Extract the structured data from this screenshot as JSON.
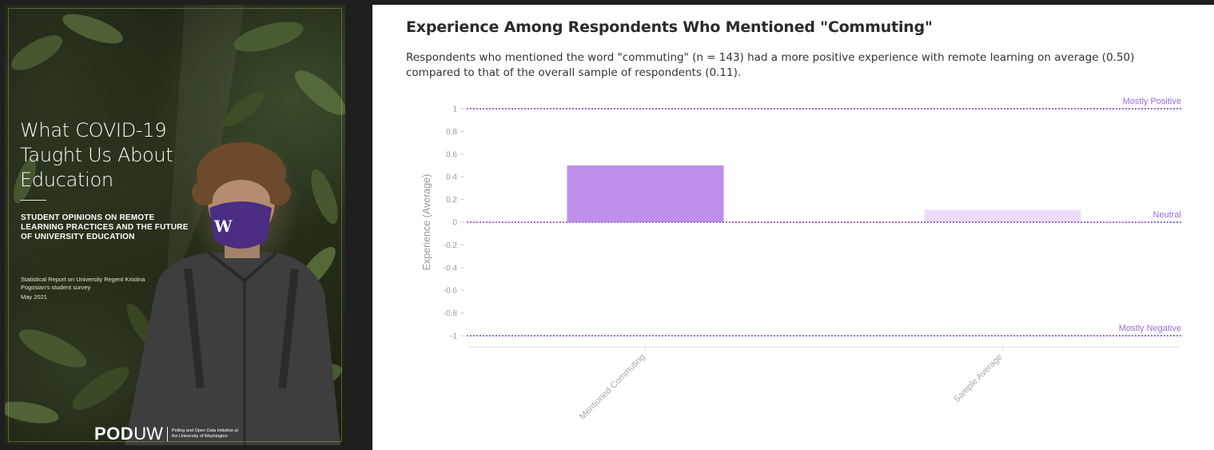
{
  "cover": {
    "title": "What COVID-19 Taught Us About Education",
    "subtitle": "STUDENT OPINIONS ON REMOTE LEARNING PRACTICES AND THE FUTURE OF UNIVERSITY EDUCATION",
    "report_line": "Statistical Report on University Regent Kristina Pogosian's student survey",
    "date": "May 2021",
    "logo_bold": "POD",
    "logo_light": "UW",
    "logo_tagline": "Polling and Open Data Initiative at the University of Washington",
    "mask_letter": "W"
  },
  "chart_panel": {
    "title": "Experience Among Respondents Who Mentioned \"Commuting\"",
    "description": "Respondents who mentioned the word \"commuting\" (n = 143) had a more positive experience with remote learning on average (0.50) compared to that of the overall sample of respondents (0.11)."
  },
  "chart_data": {
    "type": "bar",
    "categories": [
      "Mentioned Commuting",
      "Sample Average"
    ],
    "values": [
      0.5,
      0.11
    ],
    "bar_colors": [
      "#bf8fec",
      "#ecdcf8"
    ],
    "ylabel": "Experience (Average)",
    "xlabel": "",
    "ylim": [
      -1,
      1
    ],
    "yticks": [
      1,
      0.8,
      0.6,
      0.4,
      0.2,
      0,
      -0.2,
      -0.4,
      -0.6,
      -0.8,
      -1
    ],
    "ytick_labels": [
      "1",
      "0.8",
      "0.6",
      "0.4",
      "0.2",
      "0",
      "-0.2",
      "-0.4",
      "-0.6",
      "-0.8",
      "-1"
    ],
    "reference_lines": [
      {
        "value": 1,
        "label": "Mostly Positive"
      },
      {
        "value": 0,
        "label": "Neutral"
      },
      {
        "value": -1,
        "label": "Mostly Negative"
      }
    ],
    "reference_color": "#9a6ad6",
    "grid": false
  }
}
